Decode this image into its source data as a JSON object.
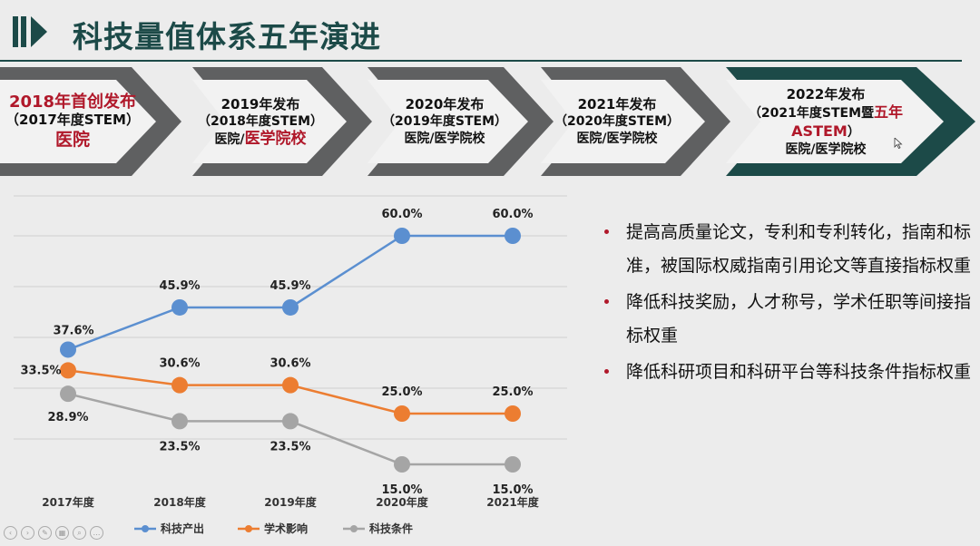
{
  "title": "科技量值体系五年演进",
  "timeline": [
    {
      "year": "2018年首创发布",
      "edition": "（2017年度STEM）",
      "scope_red": "医院",
      "scope_plain": ""
    },
    {
      "year": "2019年发布",
      "edition": "（2018年度STEM）",
      "scope_plain": "医院/",
      "scope_red": "医学院校"
    },
    {
      "year": "2020年发布",
      "edition": "（2019年度STEM）",
      "scope_plain": "医院/医学院校",
      "scope_red": ""
    },
    {
      "year": "2021年发布",
      "edition": "（2020年度STEM）",
      "scope_plain": "医院/医学院校",
      "scope_red": ""
    },
    {
      "year": "2022年发布",
      "edition_plain": "（2021年度STEM暨",
      "edition_red": "五年ASTEM",
      "edition_end": "）",
      "scope_plain": "医院/医学院校",
      "scope_red": ""
    }
  ],
  "colors": {
    "dark_teal": "#1c4a48",
    "gray_arrow": "#5f6061",
    "red": "#b0182a",
    "blue": "#5b8fd0",
    "orange": "#ec7d31",
    "gray": "#a5a5a5"
  },
  "chart_data": {
    "type": "line",
    "categories": [
      "2017年度",
      "2018年度",
      "2019年度",
      "2020年度",
      "2021年度"
    ],
    "series": [
      {
        "name": "科技产出",
        "color": "#5b8fd0",
        "values": [
          37.6,
          45.9,
          45.9,
          60.0,
          60.0
        ],
        "labels": [
          "37.6%",
          "45.9%",
          "45.9%",
          "60.0%",
          "60.0%"
        ]
      },
      {
        "name": "学术影响",
        "color": "#ec7d31",
        "values": [
          33.5,
          30.6,
          30.6,
          25.0,
          25.0
        ],
        "labels": [
          "33.5%",
          "30.6%",
          "30.6%",
          "25.0%",
          "25.0%"
        ]
      },
      {
        "name": "科技条件",
        "color": "#a5a5a5",
        "values": [
          28.9,
          23.5,
          23.5,
          15.0,
          15.0
        ],
        "labels": [
          "28.9%",
          "23.5%",
          "23.5%",
          "15.0%",
          "15.0%"
        ]
      }
    ],
    "ylim": [
      0,
      70
    ],
    "grid": true,
    "legend": "bottom"
  },
  "bullets": [
    "提高高质量论文，专利和专利转化，指南和标准，被国际权威指南引用论文等直接指标权重",
    "降低科技奖励，人才称号，学术任职等间接指标权重",
    "降低科研项目和科研平台等科技条件指标权重"
  ]
}
